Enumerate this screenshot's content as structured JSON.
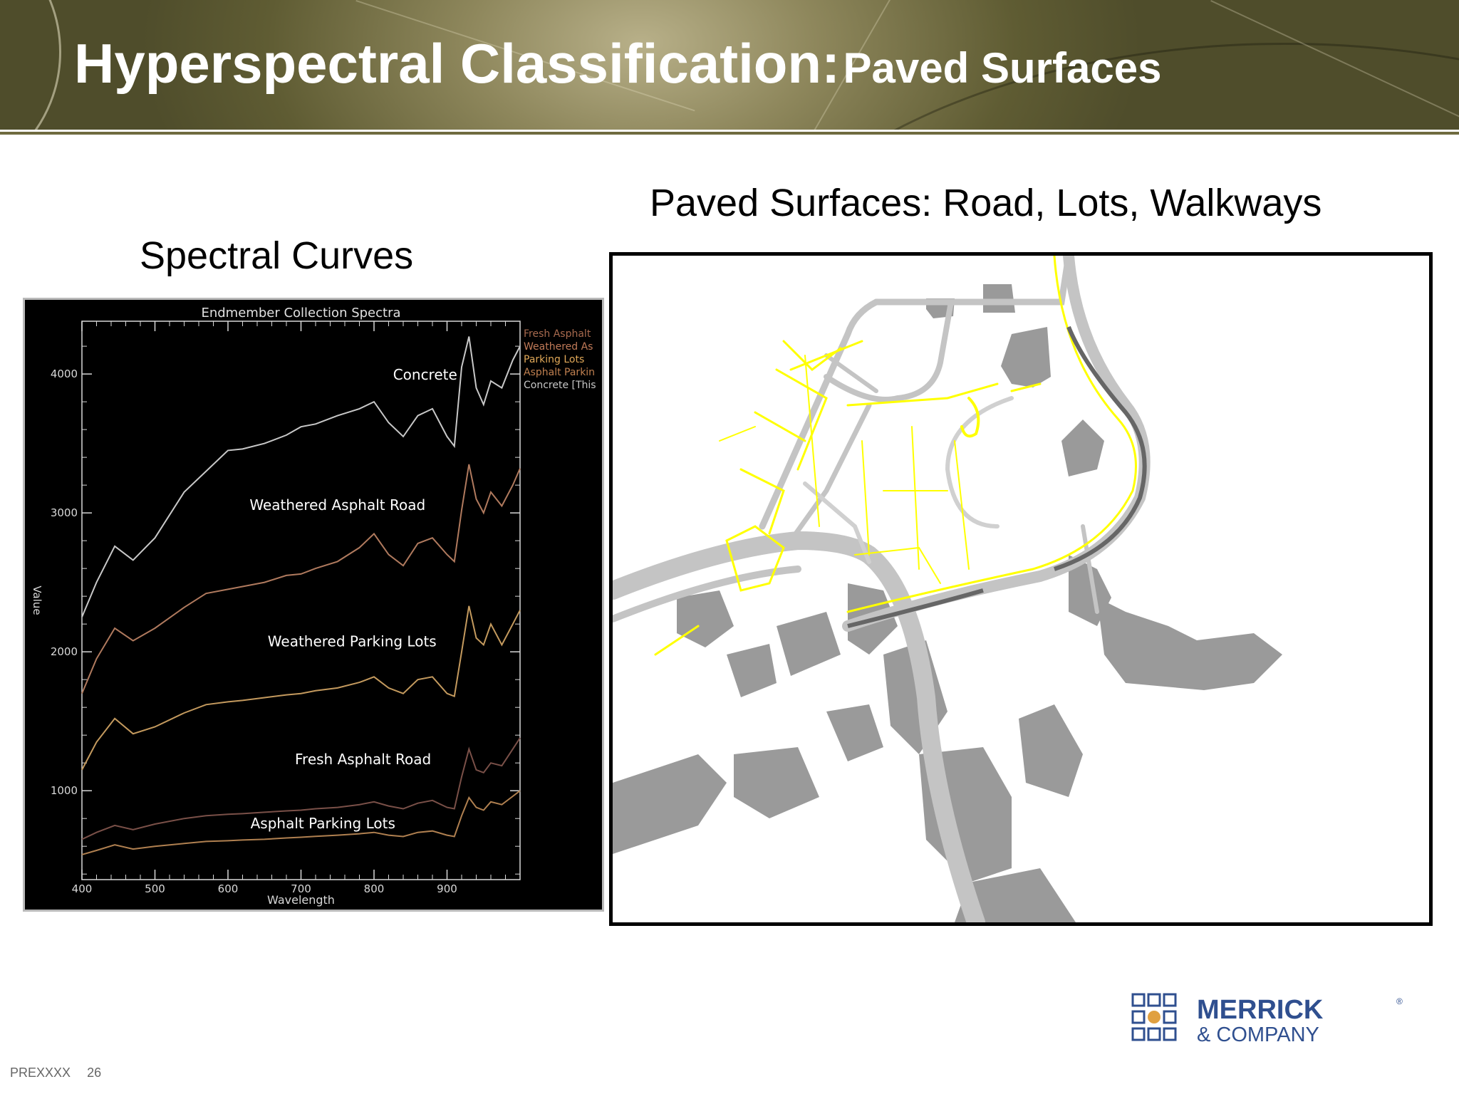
{
  "slide": {
    "title_main": "Hyperspectral Classification:",
    "title_sub": "Paved Surfaces",
    "left_caption": "Spectral Curves",
    "right_caption": "Paved Surfaces:  Road, Lots, Walkways",
    "footer_code": "PREXXXX",
    "page_number": "26"
  },
  "logo": {
    "name": "MERRICK",
    "tagline": "& COMPANY",
    "registered": "®",
    "blue": "#2f4f8f",
    "accent": "#e0a040"
  },
  "map": {
    "road_color": "#c4c4c4",
    "building_color": "#9a9a9a",
    "walkway_color": "#ffff00",
    "dark_road_color": "#666666"
  },
  "chart_data": {
    "type": "line",
    "title": "Endmember Collection Spectra",
    "xlabel": "Wavelength",
    "ylabel": "Value",
    "xlim": [
      400,
      1000
    ],
    "ylim": [
      360,
      4380
    ],
    "x_ticks": [
      400,
      500,
      600,
      700,
      800,
      900
    ],
    "y_ticks": [
      1000,
      2000,
      3000,
      4000
    ],
    "legend_placement": "top-right",
    "legend": [
      "Fresh Asphalt",
      "Weathered As",
      "Parking Lots",
      "Asphalt Parkin",
      "Concrete [This"
    ],
    "series": [
      {
        "name": "Concrete",
        "color": "#c8c8c8",
        "x": [
          400,
          420,
          445,
          470,
          500,
          540,
          570,
          600,
          620,
          650,
          680,
          700,
          720,
          750,
          780,
          800,
          820,
          840,
          860,
          880,
          900,
          910,
          920,
          930,
          940,
          950,
          960,
          975,
          990,
          1000
        ],
        "y": [
          2250,
          2500,
          2760,
          2660,
          2820,
          3150,
          3300,
          3450,
          3460,
          3500,
          3560,
          3620,
          3640,
          3700,
          3750,
          3800,
          3650,
          3550,
          3700,
          3750,
          3550,
          3480,
          4050,
          4270,
          3900,
          3780,
          3950,
          3900,
          4100,
          4200
        ]
      },
      {
        "name": "Weathered Asphalt Road",
        "color": "#b07a5e",
        "x": [
          400,
          420,
          445,
          470,
          500,
          540,
          570,
          600,
          620,
          650,
          680,
          700,
          720,
          750,
          780,
          800,
          820,
          840,
          860,
          880,
          900,
          910,
          920,
          930,
          940,
          950,
          960,
          975,
          990,
          1000
        ],
        "y": [
          1700,
          1950,
          2170,
          2080,
          2170,
          2320,
          2420,
          2450,
          2470,
          2500,
          2550,
          2560,
          2600,
          2650,
          2750,
          2850,
          2700,
          2620,
          2780,
          2820,
          2700,
          2650,
          3020,
          3350,
          3100,
          3000,
          3150,
          3050,
          3200,
          3320
        ]
      },
      {
        "name": "Weathered Parking Lots",
        "color": "#c49a5e",
        "x": [
          400,
          420,
          445,
          470,
          500,
          540,
          570,
          600,
          620,
          650,
          680,
          700,
          720,
          750,
          780,
          800,
          820,
          840,
          860,
          880,
          900,
          910,
          920,
          930,
          940,
          950,
          960,
          975,
          990,
          1000
        ],
        "y": [
          1150,
          1350,
          1520,
          1410,
          1460,
          1560,
          1620,
          1640,
          1650,
          1670,
          1690,
          1700,
          1720,
          1740,
          1780,
          1820,
          1740,
          1700,
          1800,
          1820,
          1700,
          1680,
          2000,
          2330,
          2100,
          2050,
          2200,
          2050,
          2200,
          2300
        ]
      },
      {
        "name": "Fresh Asphalt Road",
        "color": "#7a5048",
        "x": [
          400,
          420,
          445,
          470,
          500,
          540,
          570,
          600,
          620,
          650,
          680,
          700,
          720,
          750,
          780,
          800,
          820,
          840,
          860,
          880,
          900,
          910,
          920,
          930,
          940,
          950,
          960,
          975,
          990,
          1000
        ],
        "y": [
          650,
          700,
          750,
          720,
          760,
          800,
          820,
          830,
          835,
          845,
          855,
          860,
          870,
          880,
          900,
          920,
          890,
          870,
          910,
          930,
          880,
          870,
          1100,
          1300,
          1150,
          1130,
          1200,
          1180,
          1300,
          1380
        ]
      },
      {
        "name": "Asphalt Parking Lots",
        "color": "#b08050",
        "x": [
          400,
          420,
          445,
          470,
          500,
          540,
          570,
          600,
          620,
          650,
          680,
          700,
          720,
          750,
          780,
          800,
          820,
          840,
          860,
          880,
          900,
          910,
          920,
          930,
          940,
          950,
          960,
          975,
          990,
          1000
        ],
        "y": [
          540,
          570,
          610,
          580,
          600,
          620,
          635,
          640,
          645,
          650,
          660,
          665,
          672,
          680,
          690,
          700,
          680,
          670,
          700,
          710,
          680,
          670,
          820,
          950,
          880,
          860,
          920,
          900,
          960,
          1000
        ]
      }
    ],
    "annotations": [
      {
        "text": "Concrete",
        "x": 870,
        "y": 3960
      },
      {
        "text": "Weathered Asphalt Road",
        "x": 750,
        "y": 3020
      },
      {
        "text": "Weathered Parking Lots",
        "x": 770,
        "y": 2040
      },
      {
        "text": "Fresh Asphalt Road",
        "x": 785,
        "y": 1190
      },
      {
        "text": "Asphalt Parking Lots",
        "x": 730,
        "y": 730
      }
    ]
  }
}
